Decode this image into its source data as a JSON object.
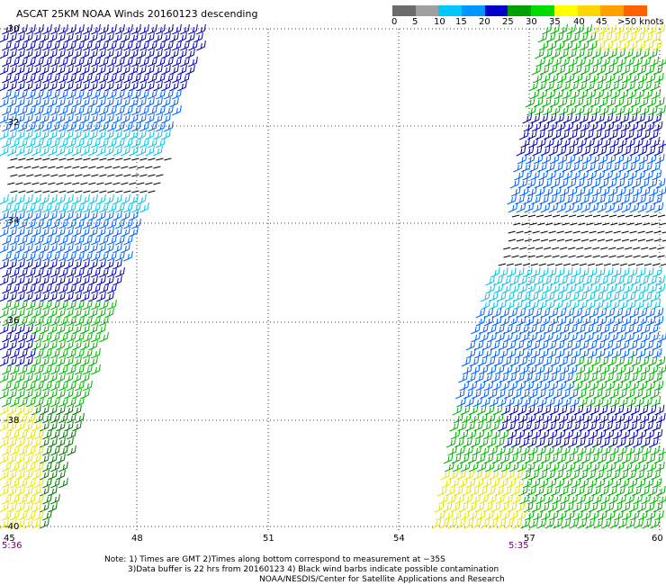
{
  "title": "ASCAT 25KM NOAA Winds 20160123 descending",
  "legend": {
    "colors": [
      "#6b6b6b",
      "#a0a0a0",
      "#00c8ff",
      "#0096ff",
      "#0000c8",
      "#00a000",
      "#00dc00",
      "#ffff00",
      "#ffd700",
      "#ffa000",
      "#ff6000",
      "#ff0000",
      "#d00000",
      "#8b4513",
      "#a0522d",
      "#ff00ff",
      "#c000c0",
      "#8000a0",
      "#400060"
    ],
    "labels": [
      "0",
      "5",
      "10",
      "15",
      "20",
      "25",
      "30",
      "35",
      "40",
      "45",
      ">50 knots"
    ]
  },
  "map": {
    "lat_labels": [
      "-30",
      "-32",
      "-34",
      "-36",
      "-38",
      "-40"
    ],
    "lon_labels": [
      "45",
      "48",
      "51",
      "54",
      "57",
      "60"
    ],
    "time_labels": [
      "5:36",
      "5:35"
    ]
  },
  "notes": {
    "line1": "Note: 1) Times are GMT 2)Times along bottom correspond to measurement at −35S",
    "line2": "3)Data buffer is 22 hrs from 20160123 4) Black wind barbs indicate possible contamination",
    "line3": "NOAA/NESDIS/Center for Satellite Applications and Research"
  },
  "barb_colors": {
    "yellow": "#e6e600",
    "green": "#00b400",
    "darkgreen": "#007800",
    "cyan": "#00c8e6",
    "blue": "#0064ff",
    "navy": "#0000b4",
    "black": "#000000"
  }
}
